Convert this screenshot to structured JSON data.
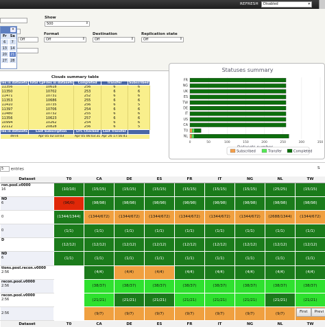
{
  "topbar": {
    "refresh_label": "REFRESH",
    "refresh_value": "Disabled"
  },
  "filters": {
    "show_label": "Show",
    "show_value": "500",
    "format_label": "Format",
    "format_value": "Off",
    "destination_label": "Destination",
    "destination_value": "Off",
    "replication_label": "Replication state",
    "replication_value": "Off",
    "left_value": "Off"
  },
  "calendar": {
    "days": [
      "Fr",
      "Sa"
    ],
    "rows": [
      [
        "6",
        "7"
      ],
      [
        "13",
        "14"
      ],
      [
        "20",
        "21"
      ],
      [
        "27",
        "28"
      ]
    ],
    "selected": "21"
  },
  "clouds_table": {
    "title": "Clouds summary table",
    "headers": [
      "les in datasets",
      "Total CpFiles in datasets",
      "Completed",
      "Transfer",
      "Subscribed"
    ],
    "rows": [
      [
        "11356",
        "10618",
        "256",
        "6",
        "6"
      ],
      [
        "11350",
        "10702",
        "253",
        "6",
        "6"
      ],
      [
        "11471",
        "10731",
        "252",
        "6",
        "6"
      ],
      [
        "11353",
        "10686",
        "255",
        "6",
        "6"
      ],
      [
        "11410",
        "10735",
        "256",
        "6",
        "5"
      ],
      [
        "11397",
        "10706",
        "254",
        "6",
        "6"
      ],
      [
        "11480",
        "10732",
        "255",
        "6",
        "6"
      ],
      [
        "11356",
        "10623",
        "257",
        "6",
        "6"
      ],
      [
        "10994",
        "10262",
        "254",
        "6",
        "6"
      ],
      [
        "22112",
        "20828",
        "256",
        "6",
        "5"
      ]
    ],
    "foot_headers": [
      "les in datasets",
      "Last Subscription",
      "LFC Checked",
      "Last Transfer"
    ],
    "foot_values": [
      "4974",
      "Apr 05 02:10:03",
      "Apr 05 06:03:31",
      "Apr 26 17:56:41"
    ]
  },
  "status_summary": {
    "title": "Statuses summary",
    "xlabel": "Datasets number",
    "legend": [
      "Subscribed",
      "Transfer",
      "Completed"
    ]
  },
  "chart_data": {
    "type": "bar",
    "orientation": "horizontal",
    "stacked": true,
    "title": "Statuses summary",
    "xlabel": "Datasets number",
    "ylabel": "",
    "xlim": [
      0,
      350
    ],
    "xticks": [
      "0",
      "50",
      "100",
      "150",
      "200",
      "250",
      "300",
      "350"
    ],
    "categories": [
      "FR",
      "NG",
      "UK",
      "ES",
      "TW",
      "DE",
      "IT",
      "US",
      "CA",
      "T0",
      "NL"
    ],
    "colors": {
      "Completed": "#0c6e0c",
      "Transfer": "#56e856",
      "Subscribed": "#f4a04c"
    },
    "series": [
      {
        "name": "Completed",
        "values": [
          258,
          258,
          258,
          258,
          258,
          258,
          258,
          258,
          258,
          18,
          255
        ]
      },
      {
        "name": "Transfer",
        "values": [
          0,
          0,
          0,
          0,
          0,
          0,
          0,
          0,
          0,
          6,
          6
        ]
      },
      {
        "name": "Subscribed",
        "values": [
          0,
          0,
          0,
          0,
          0,
          0,
          0,
          0,
          0,
          6,
          5
        ]
      }
    ]
  },
  "entries": {
    "value": "5",
    "label": "entries",
    "right": "S"
  },
  "grid": {
    "dataset_header": "Dataset",
    "columns": [
      "T0",
      "CA",
      "DE",
      "ES",
      "FR",
      "IT",
      "NG",
      "NL",
      "TW"
    ],
    "rows": [
      {
        "name": "ron.pool.v0000",
        "sub": "16",
        "cells": [
          [
            "10/10",
            "g"
          ],
          [
            "15/15",
            "g"
          ],
          [
            "15/15",
            "g"
          ],
          [
            "15/15",
            "g"
          ],
          [
            "15/15",
            "g"
          ],
          [
            "15/15",
            "g"
          ],
          [
            "15/15",
            "g"
          ],
          [
            "25/25",
            "g"
          ],
          [
            "15/15",
            "g"
          ]
        ]
      },
      {
        "name": "ND",
        "sub": "6",
        "cells": [
          [
            "96/0",
            "r"
          ],
          [
            "98/98",
            "g"
          ],
          [
            "98/98",
            "g"
          ],
          [
            "98/98",
            "g"
          ],
          [
            "98/98",
            "g"
          ],
          [
            "98/98",
            "g"
          ],
          [
            "98/98",
            "g"
          ],
          [
            "98/98",
            "g"
          ],
          [
            "98/98",
            "g"
          ]
        ]
      },
      {
        "name": "",
        "sub": "0",
        "cells": [
          [
            "1344/1344",
            "g"
          ],
          [
            "1344/672",
            "o"
          ],
          [
            "1344/672",
            "o"
          ],
          [
            "1344/672",
            "o"
          ],
          [
            "1344/672",
            "o"
          ],
          [
            "1344/672",
            "o"
          ],
          [
            "1344/672",
            "o"
          ],
          [
            "2688/1344",
            "o"
          ],
          [
            "1344/672",
            "o"
          ]
        ]
      },
      {
        "name": "",
        "sub": "0",
        "cells": [
          [
            "1/1",
            "g"
          ],
          [
            "1/1",
            "g"
          ],
          [
            "1/1",
            "g"
          ],
          [
            "1/1",
            "g"
          ],
          [
            "1/1",
            "g"
          ],
          [
            "1/1",
            "g"
          ],
          [
            "1/1",
            "g"
          ],
          [
            "1/1",
            "g"
          ],
          [
            "1/1",
            "g"
          ]
        ]
      },
      {
        "name": "D",
        "sub": "",
        "cells": [
          [
            "12/12",
            "g"
          ],
          [
            "12/12",
            "g"
          ],
          [
            "12/12",
            "g"
          ],
          [
            "12/12",
            "g"
          ],
          [
            "12/12",
            "g"
          ],
          [
            "12/12",
            "g"
          ],
          [
            "12/12",
            "g"
          ],
          [
            "12/12",
            "g"
          ],
          [
            "12/12",
            "g"
          ]
        ]
      },
      {
        "name": "ND",
        "sub": "6",
        "cells": [
          [
            "1/1",
            "g"
          ],
          [
            "1/1",
            "g"
          ],
          [
            "1/1",
            "g"
          ],
          [
            "1/1",
            "g"
          ],
          [
            "1/1",
            "g"
          ],
          [
            "1/1",
            "g"
          ],
          [
            "1/1",
            "g"
          ],
          [
            "1/1",
            "g"
          ],
          [
            "1/1",
            "g"
          ]
        ]
      },
      {
        "name": "tions.pool.recon.v0000",
        "sub": "2:56",
        "cells": [
          [
            "",
            "e"
          ],
          [
            "4/4",
            "g"
          ],
          [
            "4/4",
            "o"
          ],
          [
            "4/4",
            "o"
          ],
          [
            "4/4",
            "g"
          ],
          [
            "4/4",
            "g"
          ],
          [
            "4/4",
            "g"
          ],
          [
            "4/4",
            "g"
          ],
          [
            "4/4",
            "g"
          ]
        ]
      },
      {
        "name": "recon.pool.v0000",
        "sub": "2:56",
        "cells": [
          [
            "",
            "e"
          ],
          [
            "38/37",
            "l"
          ],
          [
            "38/37",
            "l"
          ],
          [
            "38/37",
            "l"
          ],
          [
            "38/37",
            "l"
          ],
          [
            "38/37",
            "l"
          ],
          [
            "38/37",
            "l"
          ],
          [
            "38/37",
            "l"
          ],
          [
            "38/37",
            "l"
          ]
        ]
      },
      {
        "name": "recon.pool.v0000",
        "sub": "2:56",
        "cells": [
          [
            "",
            "e"
          ],
          [
            "21/21",
            "l"
          ],
          [
            "21/21",
            "g"
          ],
          [
            "21/21",
            "g"
          ],
          [
            "21/21",
            "l"
          ],
          [
            "21/21",
            "l"
          ],
          [
            "21/21",
            "l"
          ],
          [
            "21/21",
            "g"
          ],
          [
            "21/21",
            "l"
          ]
        ]
      },
      {
        "name": "",
        "sub": "2:56",
        "cells": [
          [
            "",
            "e"
          ],
          [
            "9/7",
            "o"
          ],
          [
            "9/7",
            "o"
          ],
          [
            "9/7",
            "o"
          ],
          [
            "9/7",
            "o"
          ],
          [
            "9/7",
            "o"
          ],
          [
            "9/7",
            "o"
          ],
          [
            "9/7",
            "o"
          ],
          [
            "9/7",
            "o"
          ]
        ]
      }
    ],
    "footer_dataset": "Dataset"
  },
  "pager": {
    "first": "First",
    "previous": "Previ"
  }
}
